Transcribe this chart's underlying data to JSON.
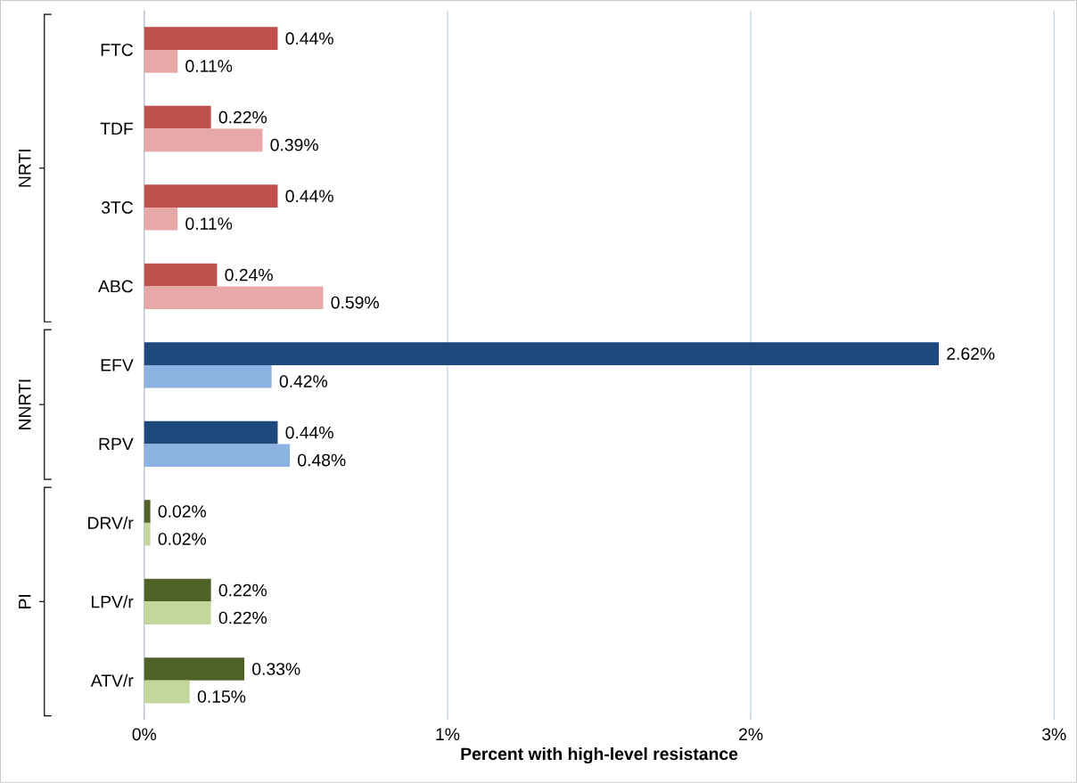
{
  "chart_data": {
    "type": "bar",
    "orientation": "horizontal",
    "xlabel": "Percent with high-level resistance",
    "categories": [
      "FTC",
      "TDF",
      "3TC",
      "ABC",
      "EFV",
      "RPV",
      "DRV/r",
      "LPV/r",
      "ATV/r"
    ],
    "series": [
      {
        "colors": [
          "#c0504d",
          "#c0504d",
          "#c0504d",
          "#c0504d",
          "#1f497d",
          "#1f497d",
          "#4f6228",
          "#4f6228",
          "#4f6228"
        ],
        "values": [
          0.44,
          0.22,
          0.44,
          0.24,
          2.62,
          0.44,
          0.02,
          0.22,
          0.33
        ],
        "value_labels": [
          "0.44%",
          "0.22%",
          "0.44%",
          "0.24%",
          "2.62%",
          "0.44%",
          "0.02%",
          "0.22%",
          "0.33%"
        ]
      },
      {
        "colors": [
          "#e6a9a8",
          "#e6a9a8",
          "#e6a9a8",
          "#e6a9a8",
          "#8db3e2",
          "#8db3e2",
          "#c3d69b",
          "#c3d69b",
          "#c3d69b"
        ],
        "values": [
          0.11,
          0.39,
          0.11,
          0.59,
          0.42,
          0.48,
          0.02,
          0.22,
          0.15
        ],
        "value_labels": [
          "0.11%",
          "0.39%",
          "0.11%",
          "0.59%",
          "0.42%",
          "0.48%",
          "0.02%",
          "0.22%",
          "0.15%"
        ]
      }
    ],
    "xlim": [
      0,
      3
    ],
    "xticks": [
      {
        "value": 0,
        "label": "0%"
      },
      {
        "value": 1,
        "label": "1%"
      },
      {
        "value": 2,
        "label": "2%"
      },
      {
        "value": 3,
        "label": "3%"
      }
    ],
    "grid": "x",
    "annotations": [
      "NRTI",
      "NNRTI",
      "PI"
    ]
  }
}
